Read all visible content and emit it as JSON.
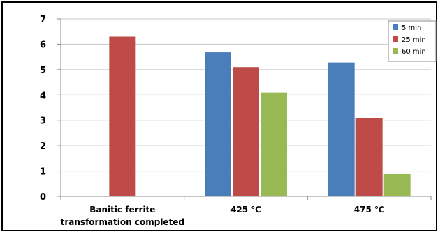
{
  "chart_data": {
    "type": "bar",
    "title": "",
    "xlabel": "",
    "ylabel": "",
    "ylim": [
      0,
      7
    ],
    "yticks": [
      0,
      1,
      2,
      3,
      4,
      5,
      6,
      7
    ],
    "grid": true,
    "legend_position": "top-right",
    "categories": [
      [
        "Banitic ferrite",
        "transformation completed"
      ],
      [
        "425 ℃"
      ],
      [
        "475 ℃"
      ]
    ],
    "series": [
      {
        "name": "5 min",
        "color": "#4a7ebb",
        "values": [
          null,
          5.68,
          5.28
        ]
      },
      {
        "name": "25 min",
        "color": "#be4b48",
        "values": [
          6.3,
          5.1,
          3.08
        ]
      },
      {
        "name": "60 min",
        "color": "#98b954",
        "values": [
          null,
          4.1,
          0.88
        ]
      }
    ]
  }
}
